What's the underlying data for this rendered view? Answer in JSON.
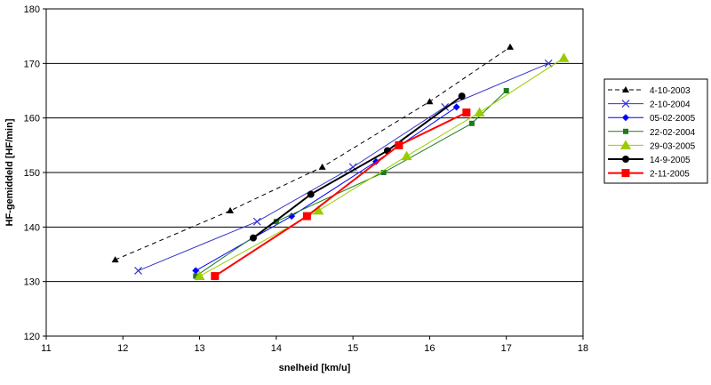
{
  "chart_data": {
    "type": "line",
    "xlabel": "snelheid [km/u]",
    "ylabel": "HF-gemiddeld [HF/min]",
    "xlim": [
      11,
      18
    ],
    "ylim": [
      120,
      180
    ],
    "x_ticks": [
      "11",
      "12",
      "13",
      "14",
      "15",
      "16",
      "17",
      "18"
    ],
    "y_ticks": [
      "120",
      "130",
      "140",
      "150",
      "160",
      "170",
      "180"
    ],
    "grid": "horizontal",
    "legend_position": "right",
    "series": [
      {
        "name": "4-10-2003",
        "color": "#000000",
        "dash": true,
        "marker": "triangle",
        "width": 1,
        "points": [
          [
            11.9,
            134
          ],
          [
            13.4,
            143
          ],
          [
            14.6,
            151
          ],
          [
            16.0,
            163
          ],
          [
            17.05,
            173
          ]
        ]
      },
      {
        "name": "2-10-2004",
        "color": "#3333cc",
        "dash": false,
        "marker": "x",
        "width": 1,
        "points": [
          [
            12.2,
            132
          ],
          [
            13.75,
            141
          ],
          [
            15.0,
            151
          ],
          [
            16.2,
            162
          ],
          [
            17.55,
            170
          ]
        ]
      },
      {
        "name": "05-02-2005",
        "color": "#0000ff",
        "dash": false,
        "marker": "diamond",
        "width": 1,
        "points": [
          [
            12.95,
            132
          ],
          [
            14.2,
            142
          ],
          [
            15.3,
            152
          ],
          [
            16.35,
            162
          ]
        ]
      },
      {
        "name": "22-02-2004",
        "color": "#1f7a1f",
        "dash": false,
        "marker": "square-small",
        "width": 1,
        "points": [
          [
            12.95,
            131
          ],
          [
            14.0,
            141
          ],
          [
            15.4,
            150
          ],
          [
            16.55,
            159
          ],
          [
            17.0,
            165
          ]
        ]
      },
      {
        "name": "29-03-2005",
        "color": "#99cc00",
        "dash": false,
        "marker": "triangle-big",
        "width": 1,
        "points": [
          [
            13.0,
            131
          ],
          [
            14.55,
            143
          ],
          [
            15.7,
            153
          ],
          [
            16.65,
            161
          ],
          [
            17.75,
            171
          ]
        ]
      },
      {
        "name": "14-9-2005",
        "color": "#000000",
        "dash": false,
        "marker": "circle",
        "width": 2,
        "points": [
          [
            13.7,
            138
          ],
          [
            14.45,
            146
          ],
          [
            15.45,
            154
          ],
          [
            16.42,
            164
          ]
        ]
      },
      {
        "name": "2-11-2005",
        "color": "#ff0000",
        "dash": false,
        "marker": "square",
        "width": 2,
        "points": [
          [
            13.2,
            131
          ],
          [
            14.4,
            142
          ],
          [
            15.6,
            155
          ],
          [
            16.48,
            161
          ]
        ]
      }
    ]
  }
}
